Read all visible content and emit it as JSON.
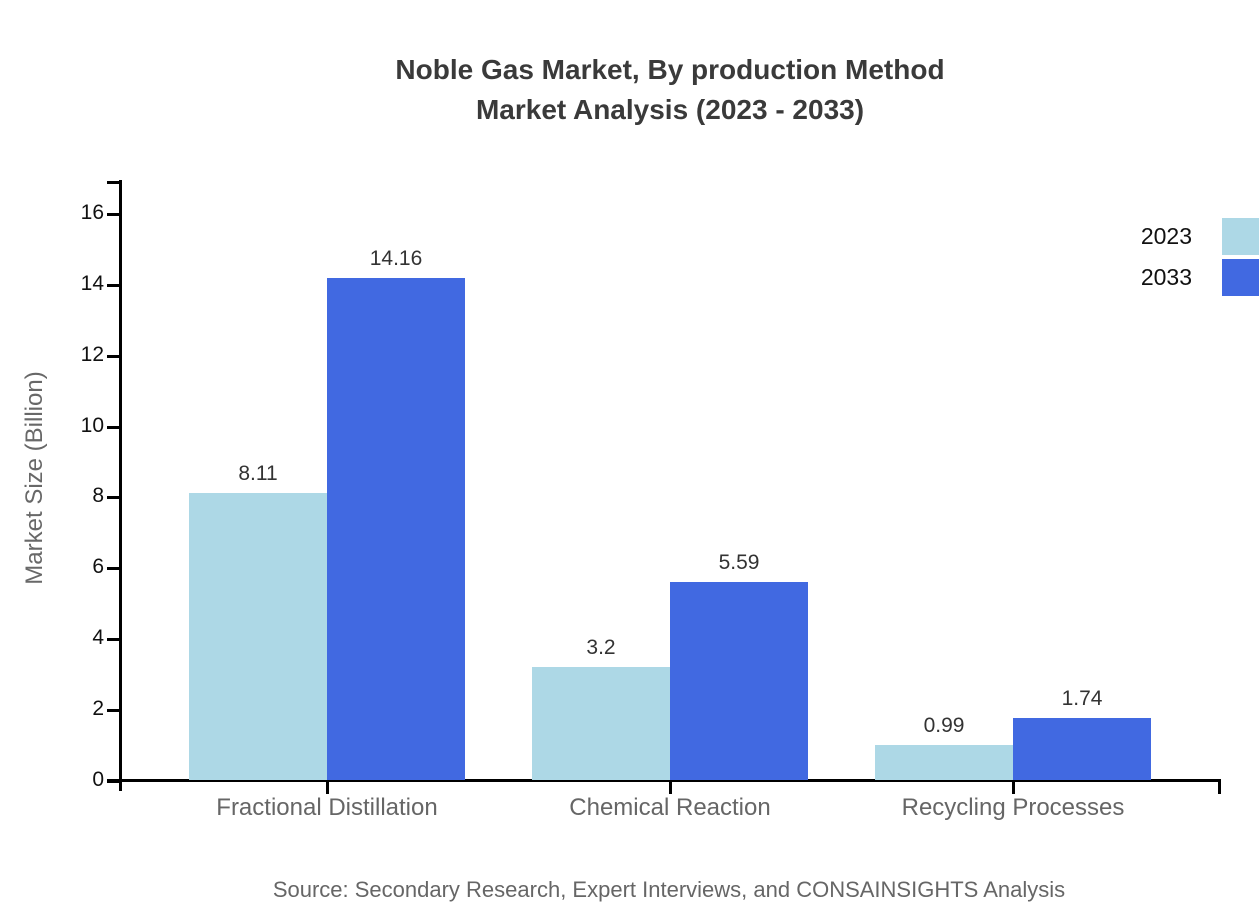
{
  "title": {
    "line1": "Noble Gas Market, By production Method",
    "line2": "Market Analysis (2023 - 2033)"
  },
  "y_axis_label": "Market Size (Billion)",
  "source_note": "Source: Secondary Research, Expert Interviews, and CONSAINSIGHTS Analysis",
  "colors": {
    "series_2023": "#ADD8E6",
    "series_2033": "#4169E1",
    "axis": "#000000",
    "title_text": "#3a3a3a",
    "muted_text": "#666666",
    "value_text": "#333333"
  },
  "chart_data": {
    "type": "bar",
    "title": "Noble Gas Market, By production Method Market Analysis (2023 - 2033)",
    "xlabel": "",
    "ylabel": "Market Size (Billion)",
    "categories": [
      "Fractional Distillation",
      "Chemical Reaction",
      "Recycling Processes"
    ],
    "series": [
      {
        "name": "2023",
        "color": "#ADD8E6",
        "values": [
          8.11,
          3.2,
          0.99
        ]
      },
      {
        "name": "2033",
        "color": "#4169E1",
        "values": [
          14.16,
          5.59,
          1.74
        ]
      }
    ],
    "yticks": [
      0,
      2,
      4,
      6,
      8,
      10,
      12,
      14,
      16
    ],
    "ylim": [
      0,
      16.9
    ],
    "grid": false,
    "legend_position": "upper-right-outside",
    "bar_value_labels": true
  }
}
